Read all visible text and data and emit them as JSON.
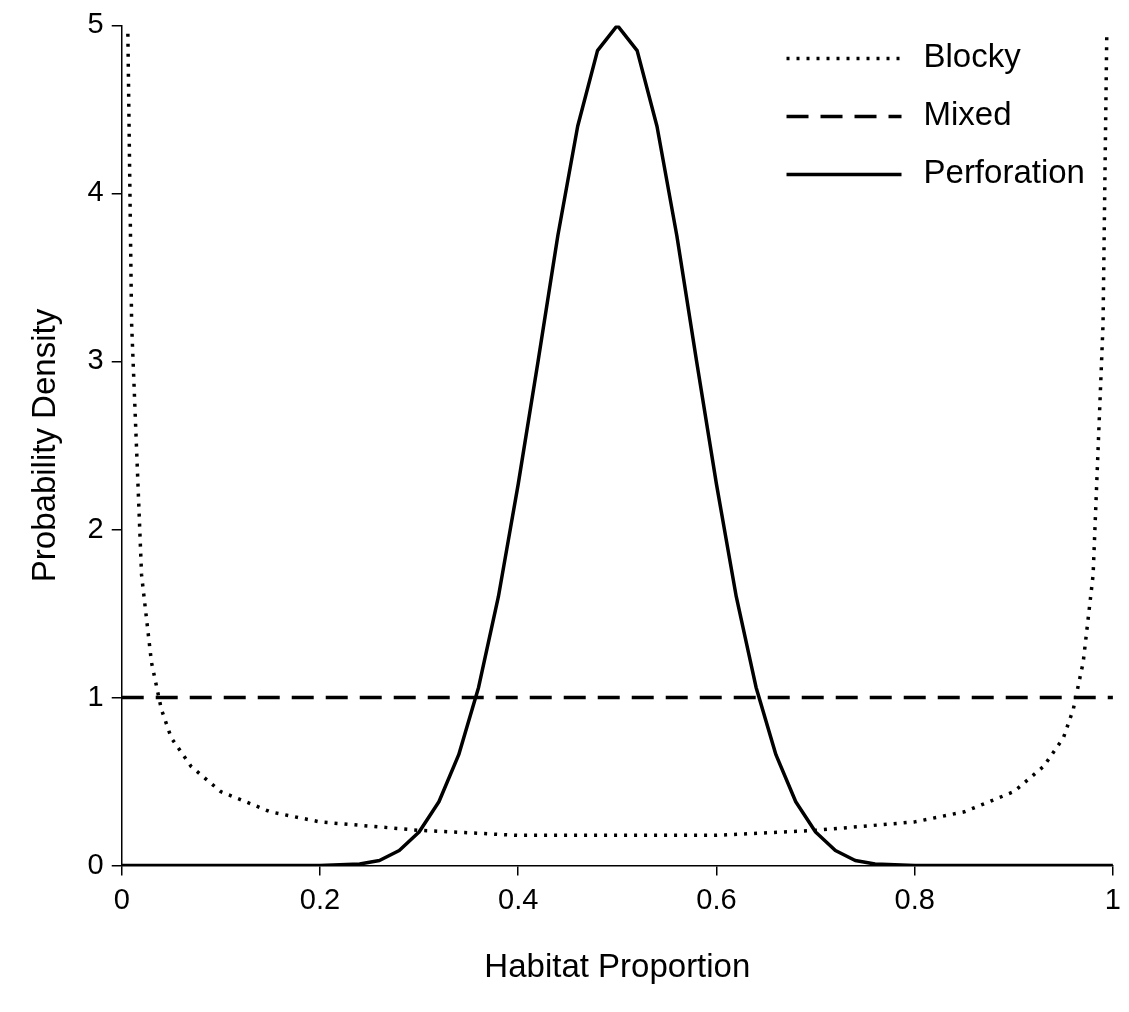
{
  "chart_data": {
    "type": "line",
    "xlabel": "Habitat Proportion",
    "ylabel": "Probability Density",
    "xlim": [
      0,
      1
    ],
    "ylim": [
      0,
      5
    ],
    "xticks": [
      0,
      0.2,
      0.4,
      0.6,
      0.8,
      1
    ],
    "yticks": [
      0,
      1,
      2,
      3,
      4,
      5
    ],
    "grid": false,
    "legend": "top right",
    "marker": "none",
    "series": [
      {
        "name": "Blocky",
        "color": "#000000",
        "line_style": "dotted",
        "x": [
          0.0062,
          0.01,
          0.02,
          0.03,
          0.04,
          0.05,
          0.07,
          0.1,
          0.15,
          0.2,
          0.3,
          0.4,
          0.5,
          0.6,
          0.7,
          0.8,
          0.85,
          0.9,
          0.93,
          0.95,
          0.96,
          0.97,
          0.98,
          0.99,
          0.9938
        ],
        "values": [
          4.95,
          3.22,
          1.73,
          1.21,
          0.93,
          0.76,
          0.59,
          0.44,
          0.32,
          0.26,
          0.21,
          0.18,
          0.18,
          0.18,
          0.21,
          0.26,
          0.32,
          0.44,
          0.59,
          0.76,
          0.93,
          1.21,
          1.73,
          3.22,
          4.95
        ]
      },
      {
        "name": "Mixed",
        "color": "#000000",
        "line_style": "dashed",
        "x": [
          0,
          1
        ],
        "values": [
          1,
          1
        ]
      },
      {
        "name": "Perforation",
        "color": "#000000",
        "line_style": "solid",
        "x": [
          0,
          0.2,
          0.24,
          0.26,
          0.28,
          0.3,
          0.32,
          0.34,
          0.36,
          0.38,
          0.4,
          0.42,
          0.44,
          0.46,
          0.48,
          0.5,
          0.52,
          0.54,
          0.56,
          0.58,
          0.6,
          0.62,
          0.64,
          0.66,
          0.68,
          0.7,
          0.72,
          0.74,
          0.76,
          0.8,
          1
        ],
        "values": [
          0,
          0,
          0.01,
          0.03,
          0.09,
          0.2,
          0.38,
          0.66,
          1.06,
          1.6,
          2.27,
          3.0,
          3.75,
          4.4,
          4.85,
          5,
          4.85,
          4.4,
          3.75,
          3.0,
          2.27,
          1.6,
          1.06,
          0.66,
          0.38,
          0.2,
          0.09,
          0.03,
          0.01,
          0,
          0
        ]
      }
    ]
  }
}
